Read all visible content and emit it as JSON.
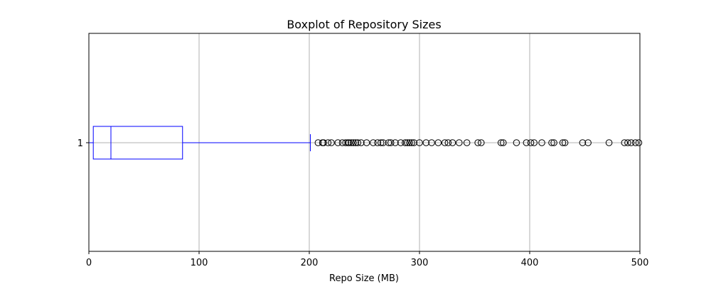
{
  "chart_data": {
    "type": "boxplot",
    "orientation": "horizontal",
    "title": "Boxplot of Repository Sizes",
    "xlabel": "Repo Size (MB)",
    "ylabel": "",
    "xlim": [
      0,
      500
    ],
    "x_ticks": [
      0,
      100,
      200,
      300,
      400,
      500
    ],
    "y_ticks": [
      "1"
    ],
    "grid": true,
    "box_color": "#0000ff",
    "outlier_color": "#000000",
    "box": {
      "category": "1",
      "whisker_low": 0,
      "q1": 4,
      "median": 20,
      "q3": 85,
      "whisker_high": 201
    },
    "outliers": [
      208,
      212,
      213,
      217,
      220,
      226,
      230,
      233,
      235,
      236,
      238,
      240,
      242,
      244,
      247,
      252,
      258,
      262,
      265,
      267,
      272,
      274,
      278,
      283,
      287,
      289,
      291,
      293,
      295,
      300,
      306,
      311,
      317,
      323,
      326,
      330,
      336,
      343,
      353,
      356,
      374,
      376,
      388,
      397,
      401,
      404,
      411,
      420,
      422,
      430,
      432,
      448,
      453,
      472,
      486,
      489,
      492,
      496,
      499
    ]
  }
}
